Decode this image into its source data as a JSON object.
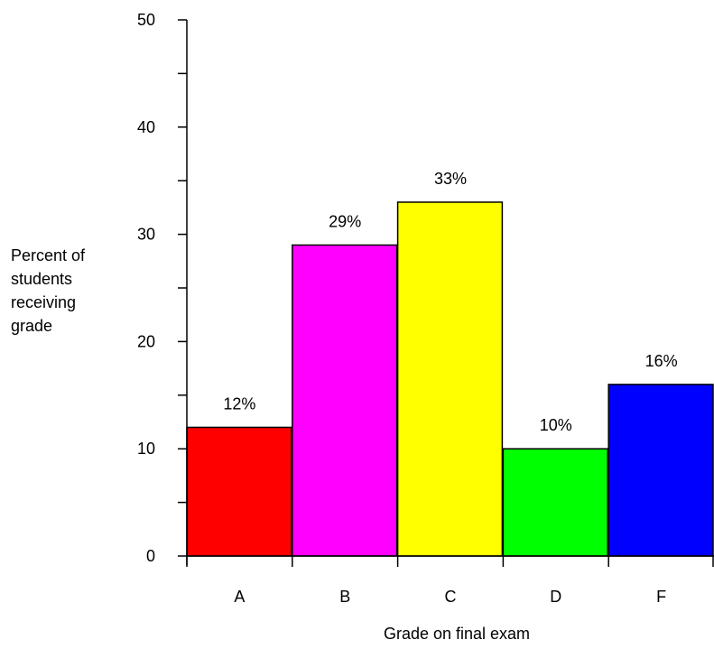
{
  "chart_data": {
    "type": "bar",
    "categories": [
      "A",
      "B",
      "C",
      "D",
      "F"
    ],
    "values": [
      12,
      29,
      33,
      10,
      16
    ],
    "data_labels": [
      "12%",
      "29%",
      "33%",
      "10%",
      "16%"
    ],
    "colors": [
      "#ff0000",
      "#ff00ff",
      "#ffff00",
      "#00ff00",
      "#0000ff"
    ],
    "xlabel": "Grade on final exam",
    "ylabel_lines": [
      "Percent of",
      "students",
      "receiving",
      "grade"
    ],
    "ylim": [
      0,
      50
    ],
    "yticks": [
      "0",
      "10",
      "20",
      "30",
      "40",
      "50"
    ],
    "grid": false,
    "legend": "none"
  }
}
